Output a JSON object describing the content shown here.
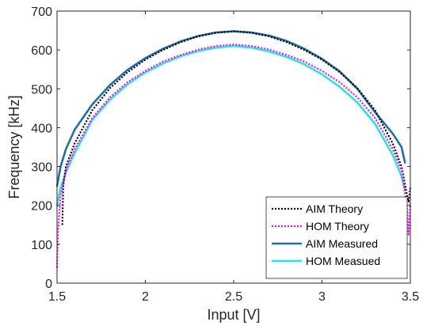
{
  "chart_data": {
    "type": "line",
    "title": "",
    "xlabel": "Input [V]",
    "ylabel": "Frequency [kHz]",
    "xlim": [
      1.5,
      3.5
    ],
    "ylim": [
      0,
      700
    ],
    "xticks": [
      1.5,
      2,
      2.5,
      3,
      3.5
    ],
    "xtick_labels": [
      "1.5",
      "2",
      "2.5",
      "3",
      "3.5"
    ],
    "yticks": [
      0,
      100,
      200,
      300,
      400,
      500,
      600,
      700
    ],
    "ytick_labels": [
      "0",
      "100",
      "200",
      "300",
      "400",
      "500",
      "600",
      "700"
    ],
    "grid": false,
    "legend_position": "bottom-right",
    "series": [
      {
        "name": "AIM Theory",
        "color": "#000000",
        "style": "dotted",
        "x": [
          1.53,
          1.535,
          1.55,
          1.6,
          1.7,
          1.8,
          1.9,
          2.0,
          2.1,
          2.2,
          2.3,
          2.4,
          2.5,
          2.6,
          2.7,
          2.8,
          2.9,
          3.0,
          3.1,
          3.2,
          3.3,
          3.4,
          3.45,
          3.48,
          3.49,
          3.5
        ],
        "y": [
          150,
          250,
          300,
          360,
          445,
          502,
          543,
          575,
          600,
          620,
          635,
          644,
          648,
          644,
          635,
          620,
          600,
          575,
          543,
          502,
          445,
          360,
          300,
          230,
          210,
          245
        ]
      },
      {
        "name": "HOM Theory",
        "color": "#ff00ff",
        "style": "dotted",
        "x": [
          1.5,
          1.505,
          1.52,
          1.55,
          1.6,
          1.7,
          1.8,
          1.9,
          2.0,
          2.1,
          2.2,
          2.3,
          2.4,
          2.5,
          2.6,
          2.7,
          2.8,
          2.9,
          3.0,
          3.1,
          3.2,
          3.3,
          3.4,
          3.45,
          3.48,
          3.49,
          3.5
        ],
        "y": [
          40,
          130,
          225,
          290,
          345,
          425,
          478,
          517,
          546,
          570,
          587,
          601,
          610,
          614,
          610,
          601,
          587,
          570,
          546,
          517,
          478,
          425,
          345,
          290,
          200,
          125,
          205
        ]
      },
      {
        "name": "AIM Measured",
        "color": "#1f6fb0",
        "style": "solid",
        "x": [
          1.5,
          1.52,
          1.55,
          1.6,
          1.7,
          1.8,
          1.9,
          2.0,
          2.1,
          2.2,
          2.3,
          2.4,
          2.5,
          2.6,
          2.7,
          2.8,
          2.9,
          3.0,
          3.1,
          3.2,
          3.3,
          3.4,
          3.45,
          3.47
        ],
        "y": [
          250,
          300,
          345,
          395,
          460,
          510,
          549,
          579,
          603,
          622,
          636,
          645,
          648,
          645,
          637,
          623,
          603,
          577,
          545,
          500,
          440,
          385,
          350,
          310
        ]
      },
      {
        "name": "HOM Measued",
        "color": "#26e3f2",
        "style": "solid",
        "x": [
          1.5,
          1.52,
          1.55,
          1.6,
          1.7,
          1.8,
          1.9,
          2.0,
          2.1,
          2.2,
          2.3,
          2.4,
          2.5,
          2.6,
          2.7,
          2.8,
          2.9,
          3.0,
          3.1,
          3.2,
          3.3,
          3.4,
          3.45,
          3.47
        ],
        "y": [
          200,
          245,
          285,
          335,
          420,
          472,
          512,
          542,
          565,
          584,
          597,
          606,
          610,
          606,
          596,
          582,
          563,
          537,
          505,
          465,
          410,
          330,
          275,
          240
        ]
      }
    ]
  }
}
